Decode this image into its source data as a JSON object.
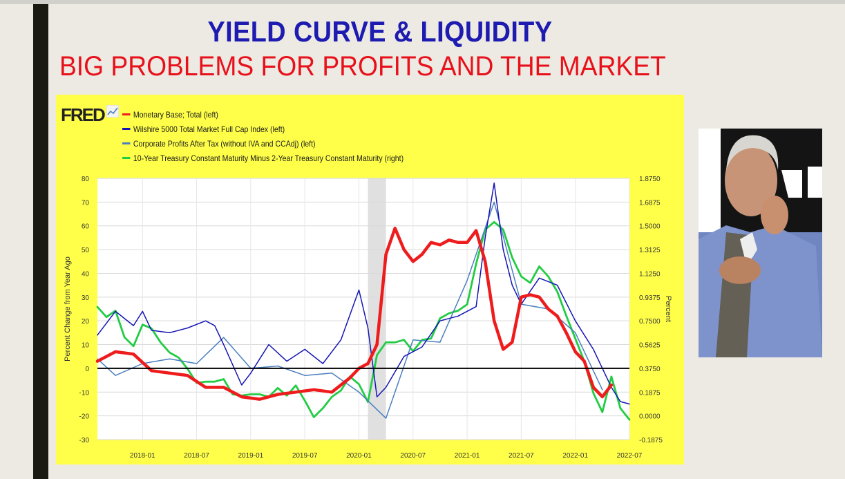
{
  "slide": {
    "title": "YIELD CURVE  & LIQUIDITY",
    "subtitle": "BIG PROBLEMS FOR PROFITS AND THE MARKET"
  },
  "colors": {
    "title": "#1d1bb0",
    "subtitle": "#e8101a",
    "panel_background": "#ffff4a",
    "plot_background": "#ffffff",
    "recession_shading": "#e0e0e0"
  },
  "fred": {
    "logo_text": "FRED",
    "logo_icon": "chart-line-icon"
  },
  "photo": {
    "icon": "person-photo"
  },
  "chart_data": {
    "type": "line",
    "source": "FRED",
    "ylabel": "Percent Change from Year Ago",
    "ylabel_right": "Percent",
    "ylim": [
      -30,
      80
    ],
    "ylim_right": [
      -0.1875,
      1.875
    ],
    "xlim": [
      "2017-08",
      "2022-07"
    ],
    "y_ticks": [
      "80",
      "70",
      "60",
      "50",
      "40",
      "30",
      "20",
      "10",
      "0",
      "-10",
      "-20",
      "-30"
    ],
    "y_ticks_right": [
      "1.8750",
      "1.6875",
      "1.5000",
      "1.3125",
      "1.1250",
      "0.9375",
      "0.7500",
      "0.5625",
      "0.3750",
      "0.1875",
      "0.0000",
      "-0.1875"
    ],
    "x_ticks": [
      "2018-01",
      "2018-07",
      "2019-01",
      "2019-07",
      "2020-01",
      "2020-07",
      "2021-01",
      "2021-07",
      "2022-01",
      "2022-07"
    ],
    "reference_line": 0,
    "recession": [
      "2020-02",
      "2020-04"
    ],
    "grid": true,
    "legend_position": "top-left",
    "series": [
      {
        "name": "Monetary Base; Total (left)",
        "axis": "left",
        "color": "#ee1c1c",
        "x": [
          "2017-08",
          "2017-10",
          "2017-12",
          "2018-02",
          "2018-04",
          "2018-06",
          "2018-08",
          "2018-10",
          "2018-12",
          "2019-02",
          "2019-04",
          "2019-06",
          "2019-08",
          "2019-10",
          "2019-12",
          "2020-01",
          "2020-02",
          "2020-03",
          "2020-04",
          "2020-05",
          "2020-06",
          "2020-07",
          "2020-08",
          "2020-09",
          "2020-10",
          "2020-11",
          "2020-12",
          "2021-01",
          "2021-02",
          "2021-03",
          "2021-04",
          "2021-05",
          "2021-06",
          "2021-07",
          "2021-08",
          "2021-09",
          "2021-10",
          "2021-11",
          "2021-12",
          "2022-01",
          "2022-02",
          "2022-03",
          "2022-04",
          "2022-05"
        ],
        "y": [
          3,
          7,
          6,
          -1,
          -2,
          -3,
          -8,
          -8,
          -12,
          -13,
          -11,
          -10,
          -9,
          -10,
          -4,
          0,
          2,
          10,
          48,
          59,
          50,
          45,
          48,
          53,
          52,
          54,
          53,
          53,
          58,
          45,
          20,
          8,
          11,
          30,
          31,
          30,
          25,
          22,
          15,
          7,
          3,
          -8,
          -12,
          -7
        ]
      },
      {
        "name": "Wilshire 5000 Total Market Full Cap Index (left)",
        "axis": "left",
        "color": "#1414b4",
        "x": [
          "2017-08",
          "2017-10",
          "2017-12",
          "2018-01",
          "2018-02",
          "2018-04",
          "2018-06",
          "2018-08",
          "2018-09",
          "2018-10",
          "2018-12",
          "2019-01",
          "2019-03",
          "2019-05",
          "2019-07",
          "2019-09",
          "2019-11",
          "2020-01",
          "2020-02",
          "2020-03",
          "2020-04",
          "2020-06",
          "2020-08",
          "2020-10",
          "2020-12",
          "2021-02",
          "2021-03",
          "2021-04",
          "2021-05",
          "2021-06",
          "2021-07",
          "2021-09",
          "2021-11",
          "2022-01",
          "2022-03",
          "2022-05",
          "2022-06",
          "2022-07"
        ],
        "y": [
          14,
          24,
          18,
          24,
          16,
          15,
          17,
          20,
          18,
          10,
          -7,
          -2,
          10,
          3,
          8,
          2,
          12,
          33,
          17,
          -12,
          -8,
          5,
          9,
          20,
          22,
          26,
          55,
          78,
          50,
          35,
          27,
          38,
          35,
          20,
          8,
          -8,
          -14,
          -15
        ]
      },
      {
        "name": "Corporate Profits After Tax (without IVA and CCAdj) (left)",
        "axis": "left",
        "color": "#4a7fbe",
        "x": [
          "2017-08",
          "2017-10",
          "2018-01",
          "2018-04",
          "2018-07",
          "2018-10",
          "2019-01",
          "2019-04",
          "2019-07",
          "2019-10",
          "2020-01",
          "2020-04",
          "2020-07",
          "2020-10",
          "2021-01",
          "2021-04",
          "2021-07",
          "2021-10",
          "2022-01",
          "2022-04"
        ],
        "y": [
          4,
          -3,
          2,
          4,
          2,
          13,
          0,
          1,
          -3,
          -2,
          -10,
          -21,
          12,
          11,
          37,
          70,
          27,
          25,
          15,
          -9
        ]
      },
      {
        "name": "10-Year Treasury Constant Maturity Minus 2-Year Treasury Constant Maturity (right)",
        "axis": "right",
        "color": "#22cc44",
        "x": [
          "2017-08",
          "2017-09",
          "2017-10",
          "2017-11",
          "2017-12",
          "2018-01",
          "2018-02",
          "2018-03",
          "2018-04",
          "2018-05",
          "2018-06",
          "2018-07",
          "2018-08",
          "2018-09",
          "2018-10",
          "2018-11",
          "2018-12",
          "2019-01",
          "2019-02",
          "2019-03",
          "2019-04",
          "2019-05",
          "2019-06",
          "2019-07",
          "2019-08",
          "2019-09",
          "2019-10",
          "2019-11",
          "2019-12",
          "2020-01",
          "2020-02",
          "2020-03",
          "2020-04",
          "2020-05",
          "2020-06",
          "2020-07",
          "2020-08",
          "2020-09",
          "2020-10",
          "2020-11",
          "2020-12",
          "2021-01",
          "2021-02",
          "2021-03",
          "2021-04",
          "2021-05",
          "2021-06",
          "2021-07",
          "2021-08",
          "2021-09",
          "2021-10",
          "2021-11",
          "2021-12",
          "2022-01",
          "2022-02",
          "2022-03",
          "2022-04",
          "2022-05",
          "2022-06",
          "2022-07"
        ],
        "y": [
          0.86,
          0.78,
          0.83,
          0.62,
          0.55,
          0.72,
          0.69,
          0.58,
          0.5,
          0.46,
          0.37,
          0.26,
          0.27,
          0.27,
          0.29,
          0.17,
          0.16,
          0.17,
          0.17,
          0.15,
          0.22,
          0.16,
          0.24,
          0.12,
          -0.01,
          0.06,
          0.15,
          0.2,
          0.31,
          0.25,
          0.11,
          0.48,
          0.58,
          0.58,
          0.6,
          0.51,
          0.6,
          0.61,
          0.77,
          0.81,
          0.83,
          0.88,
          1.2,
          1.47,
          1.53,
          1.47,
          1.25,
          1.1,
          1.05,
          1.18,
          1.1,
          0.98,
          0.79,
          0.61,
          0.43,
          0.18,
          0.03,
          0.31,
          0.06,
          -0.03
        ]
      }
    ]
  }
}
